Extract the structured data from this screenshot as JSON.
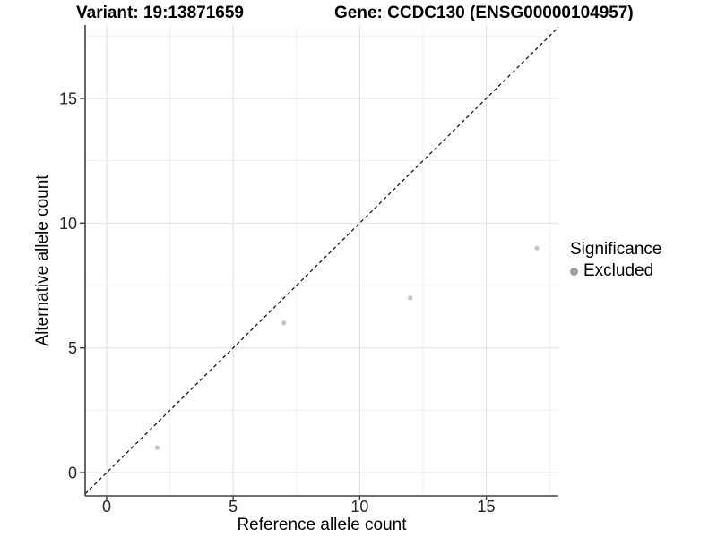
{
  "titles": {
    "variant": "Variant: 19:13871659",
    "gene": "Gene: CCDC130 (ENSG00000104957)"
  },
  "chart_data": {
    "type": "scatter",
    "title": "Variant: 19:13871659   Gene: CCDC130 (ENSG00000104957)",
    "xlabel": "Reference allele count",
    "ylabel": "Alternative allele count",
    "points": [
      {
        "x": 2,
        "y": 1
      },
      {
        "x": 7,
        "y": 6
      },
      {
        "x": 12,
        "y": 7
      },
      {
        "x": 17,
        "y": 9
      }
    ],
    "series_name": "Excluded",
    "xlim": [
      -0.85,
      17.85
    ],
    "ylim": [
      -0.93,
      17.94
    ],
    "x_ticks": [
      0,
      5,
      10,
      15
    ],
    "y_ticks": [
      0,
      5,
      10,
      15
    ],
    "x_minor_ticks": [
      2.5,
      7.5,
      12.5,
      17.5
    ],
    "y_minor_ticks": [
      2.5,
      7.5,
      12.5,
      17.5
    ],
    "identity_line": {
      "slope": 1,
      "intercept": 0,
      "style": "dashed"
    },
    "grid": true,
    "legend_position": "right",
    "point_color": "#c3c3c3"
  },
  "legend": {
    "title": "Significance",
    "items": [
      {
        "label": "Excluded",
        "color": "#9e9e9e"
      }
    ]
  },
  "colors": {
    "background": "#ffffff",
    "axis_line": "#404040",
    "grid_major": "#e2e2e2",
    "grid_minor": "#efefef",
    "tick_label": "#262626",
    "dashed_line": "#161616"
  }
}
